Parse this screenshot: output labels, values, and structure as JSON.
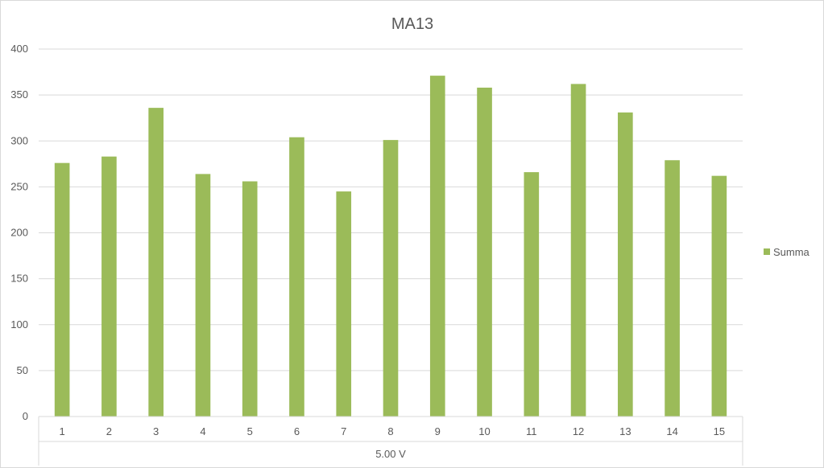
{
  "chart_data": {
    "type": "bar",
    "title": "MA13",
    "categories": [
      "1",
      "2",
      "3",
      "4",
      "5",
      "6",
      "7",
      "8",
      "9",
      "10",
      "11",
      "12",
      "13",
      "14",
      "15"
    ],
    "group_label": "5.00 V",
    "series": [
      {
        "name": "Summa",
        "color": "#9bbb59",
        "values": [
          276,
          283,
          336,
          264,
          256,
          304,
          245,
          301,
          371,
          358,
          266,
          362,
          331,
          279,
          262
        ]
      }
    ],
    "ylim": [
      0,
      400
    ],
    "yticks": [
      0,
      50,
      100,
      150,
      200,
      250,
      300,
      350,
      400
    ],
    "grid": true,
    "legend_position": "right"
  }
}
